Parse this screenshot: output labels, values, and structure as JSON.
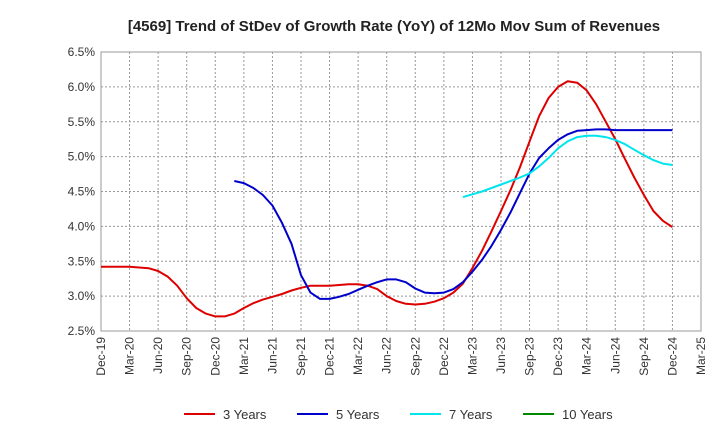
{
  "chart_data": {
    "type": "line",
    "title": "[4569]  Trend of StDev of Growth Rate (YoY) of 12Mo Mov Sum of Revenues",
    "xlabel": "",
    "ylabel": "",
    "ylim": [
      2.5,
      6.5
    ],
    "y_ticks": [
      "2.5%",
      "3.0%",
      "3.5%",
      "4.0%",
      "4.5%",
      "5.0%",
      "5.5%",
      "6.0%",
      "6.5%"
    ],
    "x_ticks": [
      "Dec-19",
      "Mar-20",
      "Jun-20",
      "Sep-20",
      "Dec-20",
      "Mar-21",
      "Jun-21",
      "Sep-21",
      "Dec-21",
      "Mar-22",
      "Jun-22",
      "Sep-22",
      "Dec-22",
      "Mar-23",
      "Jun-23",
      "Sep-23",
      "Dec-23",
      "Mar-24",
      "Jun-24",
      "Sep-24",
      "Dec-24",
      "Mar-25"
    ],
    "grid": true,
    "legend_position": "bottom",
    "series": [
      {
        "name": "3 Years",
        "color": "#dd0000",
        "start_index": 0,
        "values": [
          3.42,
          3.42,
          3.42,
          3.42,
          3.41,
          3.4,
          3.36,
          3.28,
          3.15,
          2.97,
          2.83,
          2.75,
          2.71,
          2.71,
          2.75,
          2.83,
          2.9,
          2.95,
          2.99,
          3.03,
          3.08,
          3.12,
          3.15,
          3.15,
          3.15,
          3.16,
          3.17,
          3.17,
          3.15,
          3.1,
          3.0,
          2.93,
          2.89,
          2.88,
          2.89,
          2.92,
          2.97,
          3.05,
          3.18,
          3.4,
          3.65,
          3.93,
          4.22,
          4.52,
          4.85,
          5.22,
          5.58,
          5.84,
          6.0,
          6.08,
          6.06,
          5.95,
          5.75,
          5.5,
          5.25,
          4.97,
          4.7,
          4.45,
          4.22,
          4.08,
          3.99
        ]
      },
      {
        "name": "5 Years",
        "color": "#0000cc",
        "start_index": 14,
        "values": [
          4.65,
          4.62,
          4.55,
          4.45,
          4.3,
          4.05,
          3.75,
          3.3,
          3.05,
          2.96,
          2.96,
          2.99,
          3.03,
          3.09,
          3.15,
          3.2,
          3.24,
          3.24,
          3.2,
          3.11,
          3.05,
          3.04,
          3.05,
          3.1,
          3.2,
          3.35,
          3.52,
          3.72,
          3.95,
          4.2,
          4.48,
          4.76,
          4.98,
          5.12,
          5.24,
          5.32,
          5.37,
          5.38,
          5.39,
          5.39,
          5.38,
          5.38,
          5.38,
          5.38,
          5.38,
          5.38,
          5.38
        ]
      },
      {
        "name": "7 Years",
        "color": "#00e5ee",
        "start_index": 38,
        "values": [
          4.42,
          4.46,
          4.5,
          4.55,
          4.6,
          4.65,
          4.7,
          4.76,
          4.86,
          4.98,
          5.12,
          5.22,
          5.28,
          5.3,
          5.3,
          5.28,
          5.24,
          5.18,
          5.1,
          5.02,
          4.95,
          4.9,
          4.88
        ]
      },
      {
        "name": "10 Years",
        "color": "#008800",
        "start_index": 0,
        "values": []
      }
    ]
  }
}
